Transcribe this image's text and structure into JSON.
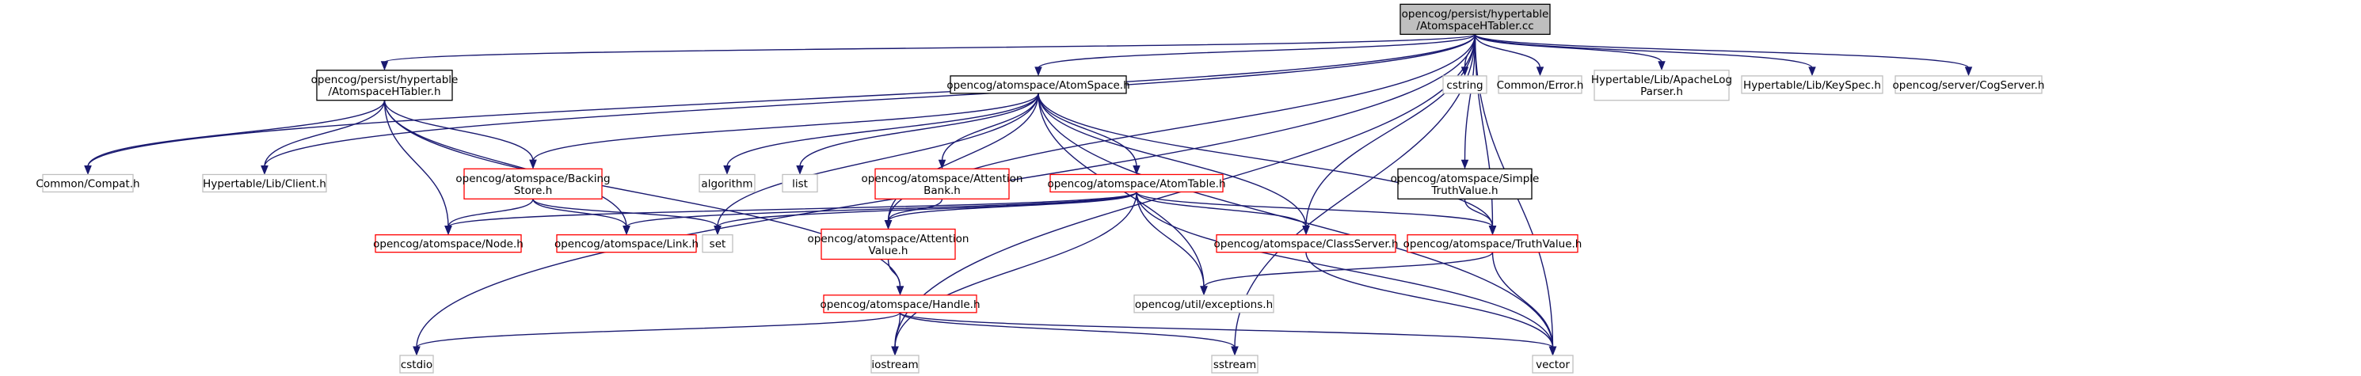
{
  "graph": {
    "nodes": [
      {
        "id": "root",
        "kind": "root",
        "lines": [
          "opencog/persist/hypertable",
          "/AtomspaceHTabler.cc"
        ]
      },
      {
        "id": "ahtabler_h",
        "kind": "doc",
        "lines": [
          "opencog/persist/hypertable",
          "/AtomspaceHTabler.h"
        ]
      },
      {
        "id": "atomspace_h",
        "kind": "doc",
        "lines": [
          "opencog/atomspace/AtomSpace.h"
        ]
      },
      {
        "id": "simple_tv",
        "kind": "doc",
        "lines": [
          "opencog/atomspace/Simple",
          "TruthValue.h"
        ]
      },
      {
        "id": "cstring",
        "kind": "ext",
        "lines": [
          "cstring"
        ]
      },
      {
        "id": "common_error",
        "kind": "ext",
        "lines": [
          "Common/Error.h"
        ]
      },
      {
        "id": "ht_apachelog",
        "kind": "ext",
        "lines": [
          "Hypertable/Lib/ApacheLog",
          "Parser.h"
        ]
      },
      {
        "id": "ht_keyspec",
        "kind": "ext",
        "lines": [
          "Hypertable/Lib/KeySpec.h"
        ]
      },
      {
        "id": "cogserver",
        "kind": "ext",
        "lines": [
          "opencog/server/CogServer.h"
        ]
      },
      {
        "id": "common_compat",
        "kind": "ext",
        "lines": [
          "Common/Compat.h"
        ]
      },
      {
        "id": "ht_client",
        "kind": "ext",
        "lines": [
          "Hypertable/Lib/Client.h"
        ]
      },
      {
        "id": "backingstore",
        "kind": "red",
        "lines": [
          "opencog/atomspace/Backing",
          "Store.h"
        ]
      },
      {
        "id": "algorithm",
        "kind": "ext",
        "lines": [
          "algorithm"
        ]
      },
      {
        "id": "list",
        "kind": "ext",
        "lines": [
          "list"
        ]
      },
      {
        "id": "attentionbank",
        "kind": "red",
        "lines": [
          "opencog/atomspace/Attention",
          "Bank.h"
        ]
      },
      {
        "id": "atomtable",
        "kind": "red",
        "lines": [
          "opencog/atomspace/AtomTable.h"
        ]
      },
      {
        "id": "node_h",
        "kind": "red",
        "lines": [
          "opencog/atomspace/Node.h"
        ]
      },
      {
        "id": "link_h",
        "kind": "red",
        "lines": [
          "opencog/atomspace/Link.h"
        ]
      },
      {
        "id": "set",
        "kind": "ext",
        "lines": [
          "set"
        ]
      },
      {
        "id": "attentionvalue",
        "kind": "red",
        "lines": [
          "opencog/atomspace/Attention",
          "Value.h"
        ]
      },
      {
        "id": "classserver",
        "kind": "red",
        "lines": [
          "opencog/atomspace/ClassServer.h"
        ]
      },
      {
        "id": "truthvalue",
        "kind": "red",
        "lines": [
          "opencog/atomspace/TruthValue.h"
        ]
      },
      {
        "id": "exceptions",
        "kind": "ext",
        "lines": [
          "opencog/util/exceptions.h"
        ]
      },
      {
        "id": "handle",
        "kind": "red",
        "lines": [
          "opencog/atomspace/Handle.h"
        ]
      },
      {
        "id": "cstdio",
        "kind": "ext",
        "lines": [
          "cstdio"
        ]
      },
      {
        "id": "iostream",
        "kind": "ext",
        "lines": [
          "iostream"
        ]
      },
      {
        "id": "sstream",
        "kind": "ext",
        "lines": [
          "sstream"
        ]
      },
      {
        "id": "vector",
        "kind": "ext",
        "lines": [
          "vector"
        ]
      }
    ],
    "edges": [
      [
        "root",
        "cstring"
      ],
      [
        "root",
        "common_error"
      ],
      [
        "root",
        "ht_apachelog"
      ],
      [
        "root",
        "ht_keyspec"
      ],
      [
        "root",
        "cogserver"
      ],
      [
        "root",
        "simple_tv"
      ],
      [
        "root",
        "truthvalue"
      ],
      [
        "root",
        "classserver"
      ],
      [
        "root",
        "atomspace_h"
      ],
      [
        "root",
        "ahtabler_h"
      ],
      [
        "root",
        "attentionvalue"
      ],
      [
        "root",
        "common_compat"
      ],
      [
        "root",
        "ht_client"
      ],
      [
        "root",
        "cstdio"
      ],
      [
        "root",
        "iostream"
      ],
      [
        "root",
        "sstream"
      ],
      [
        "root",
        "vector"
      ],
      [
        "ahtabler_h",
        "common_compat"
      ],
      [
        "ahtabler_h",
        "ht_client"
      ],
      [
        "ahtabler_h",
        "backingstore"
      ],
      [
        "ahtabler_h",
        "node_h"
      ],
      [
        "ahtabler_h",
        "link_h"
      ],
      [
        "ahtabler_h",
        "handle"
      ],
      [
        "atomspace_h",
        "backingstore"
      ],
      [
        "atomspace_h",
        "algorithm"
      ],
      [
        "atomspace_h",
        "list"
      ],
      [
        "atomspace_h",
        "attentionbank"
      ],
      [
        "atomspace_h",
        "atomtable"
      ],
      [
        "atomspace_h",
        "set"
      ],
      [
        "atomspace_h",
        "attentionvalue"
      ],
      [
        "atomspace_h",
        "classserver"
      ],
      [
        "atomspace_h",
        "truthvalue"
      ],
      [
        "atomspace_h",
        "exceptions"
      ],
      [
        "atomspace_h",
        "vector"
      ],
      [
        "backingstore",
        "node_h"
      ],
      [
        "backingstore",
        "link_h"
      ],
      [
        "backingstore",
        "set"
      ],
      [
        "attentionbank",
        "attentionvalue"
      ],
      [
        "atomtable",
        "node_h"
      ],
      [
        "atomtable",
        "link_h"
      ],
      [
        "atomtable",
        "set"
      ],
      [
        "atomtable",
        "attentionvalue"
      ],
      [
        "atomtable",
        "classserver"
      ],
      [
        "atomtable",
        "truthvalue"
      ],
      [
        "atomtable",
        "exceptions"
      ],
      [
        "atomtable",
        "iostream"
      ],
      [
        "atomtable",
        "vector"
      ],
      [
        "simple_tv",
        "truthvalue"
      ],
      [
        "attentionvalue",
        "handle"
      ],
      [
        "classserver",
        "vector"
      ],
      [
        "truthvalue",
        "exceptions"
      ],
      [
        "truthvalue",
        "vector"
      ],
      [
        "handle",
        "cstdio"
      ],
      [
        "handle",
        "iostream"
      ],
      [
        "handle",
        "sstream"
      ],
      [
        "handle",
        "vector"
      ]
    ]
  }
}
